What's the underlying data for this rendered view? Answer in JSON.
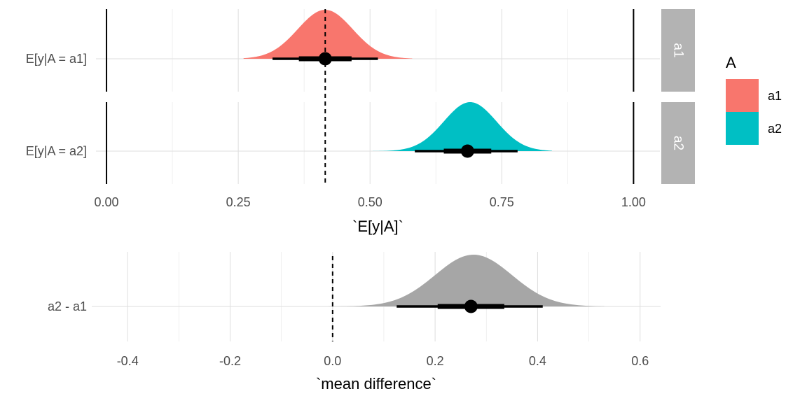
{
  "colors": {
    "a1": "#F8766D",
    "a2": "#00BFC4",
    "diff": "#A6A6A6",
    "strip": "#B3B3B3"
  },
  "legend": {
    "title": "A",
    "items": [
      {
        "label": "a1",
        "color": "#F8766D"
      },
      {
        "label": "a2",
        "color": "#00BFC4"
      }
    ]
  },
  "chart_data": [
    {
      "type": "area",
      "xlabel": "`E[y|A]`",
      "ylabel": "",
      "xlim": [
        -0.02,
        1.05
      ],
      "xticks": [
        0.0,
        0.25,
        0.5,
        0.75,
        1.0
      ],
      "xtick_labels": [
        "0.00",
        "0.25",
        "0.50",
        "0.75",
        "1.00"
      ],
      "reference_lines": [
        0,
        1
      ],
      "dashed_line_x": 0.415,
      "grid": true,
      "legend_position": "right",
      "series": [
        {
          "name": "a1",
          "row_label": "E[y|A = a1]",
          "strip": "a1",
          "color": "#F8766D",
          "density": {
            "mean": 0.415,
            "sd": 0.052,
            "min": 0.26,
            "max": 0.58
          },
          "point": 0.415,
          "interval_66": [
            0.365,
            0.465
          ],
          "interval_95": [
            0.315,
            0.515
          ]
        },
        {
          "name": "a2",
          "row_label": "E[y|A = a2]",
          "strip": "a2",
          "color": "#00BFC4",
          "density": {
            "mean": 0.69,
            "sd": 0.05,
            "min": 0.505,
            "max": 0.845
          },
          "point": 0.685,
          "interval_66": [
            0.64,
            0.73
          ],
          "interval_95": [
            0.585,
            0.78
          ]
        }
      ]
    },
    {
      "type": "area",
      "xlabel": "`mean difference`",
      "ylabel": "",
      "xlim": [
        -0.47,
        0.64
      ],
      "xticks": [
        -0.4,
        -0.2,
        0.0,
        0.2,
        0.4,
        0.6
      ],
      "xtick_labels": [
        "-0.4",
        "-0.2",
        "0.0",
        "0.2",
        "0.4",
        "0.6"
      ],
      "dashed_line_x": 0.0,
      "grid": true,
      "series": [
        {
          "name": "",
          "row_label": "a2 - a1",
          "color": "#A6A6A6",
          "density": {
            "mean": 0.275,
            "sd": 0.075,
            "min": -0.015,
            "max": 0.53
          },
          "point": 0.27,
          "interval_66": [
            0.205,
            0.335
          ],
          "interval_95": [
            0.125,
            0.41
          ]
        }
      ]
    }
  ]
}
